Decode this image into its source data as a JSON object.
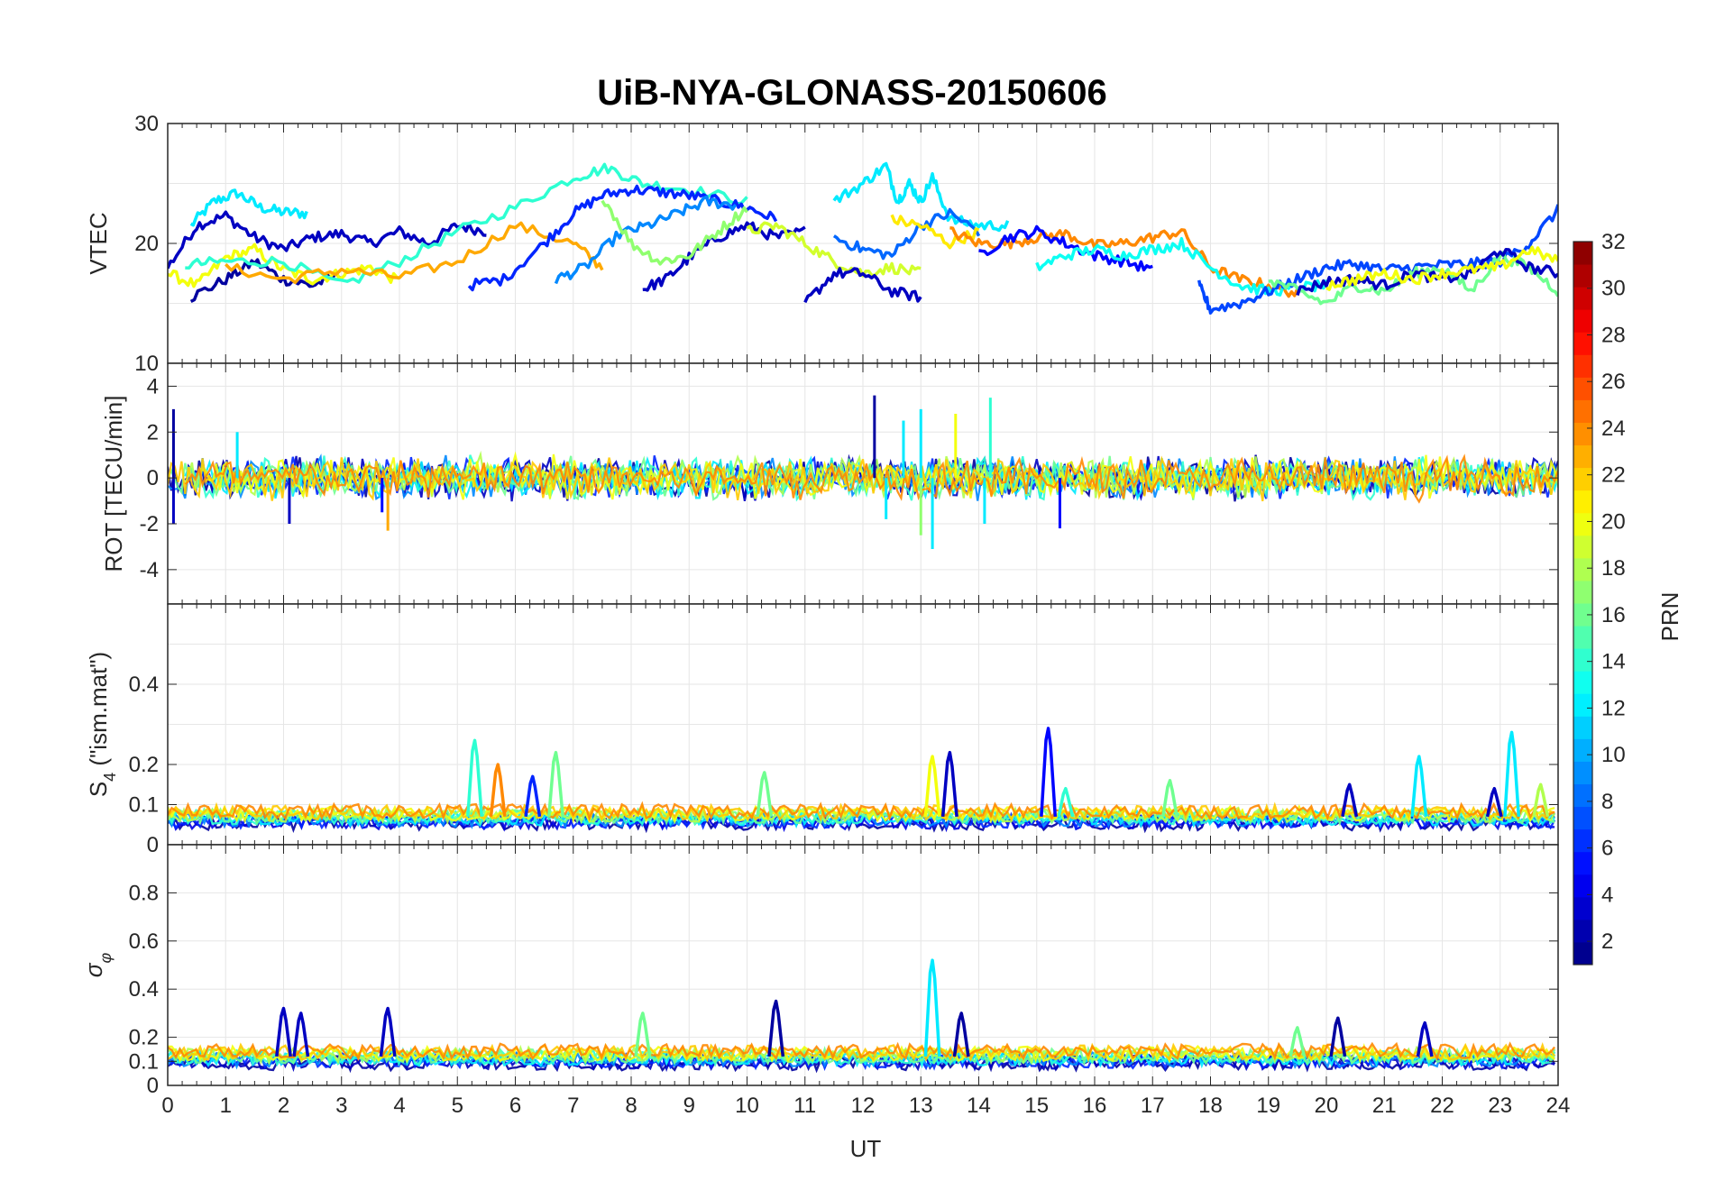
{
  "chart_data": {
    "type": "line",
    "title": "UiB-NYA-GLONASS-20150606",
    "xlabel": "UT",
    "xlim": [
      0,
      24
    ],
    "x_ticks": [
      "0",
      "1",
      "2",
      "3",
      "4",
      "5",
      "6",
      "7",
      "8",
      "9",
      "10",
      "11",
      "12",
      "13",
      "14",
      "15",
      "16",
      "17",
      "18",
      "19",
      "20",
      "21",
      "22",
      "23",
      "24"
    ],
    "panels": [
      {
        "key": "vtec",
        "ylabel": "VTEC",
        "ylim": [
          10,
          30
        ],
        "y_ticks": [
          {
            "v": 10,
            "t": "10"
          },
          {
            "v": 20,
            "t": "20"
          },
          {
            "v": 30,
            "t": "30"
          }
        ],
        "grid_y": [
          10,
          15,
          20,
          25,
          30
        ],
        "series": [
          {
            "prn": 12,
            "x": [
              0.4,
              0.8,
              1.2,
              1.6,
              2.0,
              2.4
            ],
            "y": [
              21.5,
              23.5,
              24.2,
              23.0,
              22.6,
              22.5
            ]
          },
          {
            "prn": 3,
            "x": [
              0,
              0.5,
              1.0,
              1.5,
              2.0,
              2.5,
              3.0,
              3.5,
              4.0,
              4.5,
              5.0,
              5.5
            ],
            "y": [
              18,
              21.5,
              22.3,
              20.5,
              19.5,
              20.5,
              20.8,
              20.0,
              21.0,
              20.0,
              21.5,
              21.0
            ]
          },
          {
            "prn": 2,
            "x": [
              0.4,
              1.0,
              1.5,
              2.0,
              2.5,
              3.0
            ],
            "y": [
              15.5,
              17.0,
              18.5,
              17.0,
              16.5,
              17.5
            ]
          },
          {
            "prn": 20,
            "x": [
              0,
              0.5,
              1.0,
              1.5,
              2.0,
              2.5,
              3.0,
              3.5,
              4.0
            ],
            "y": [
              17.5,
              16.5,
              18.8,
              19.5,
              17.8,
              17.0,
              17.5,
              18.0,
              16.8
            ]
          },
          {
            "prn": 14,
            "x": [
              0.3,
              1.0,
              2.0,
              3.0,
              4.0,
              5.0,
              6.0,
              7.0,
              7.6,
              8.2,
              9.0,
              10.0
            ],
            "y": [
              18.2,
              18.5,
              18.5,
              16.5,
              18.5,
              21.0,
              23.0,
              25.5,
              26.3,
              25.0,
              24.5,
              23.5
            ]
          },
          {
            "prn": 23,
            "x": [
              1.0,
              2.0,
              3.0,
              4.0,
              5.0,
              6.0,
              7.0,
              7.5
            ],
            "y": [
              18.0,
              17.0,
              17.8,
              17.2,
              18.5,
              21.5,
              20.0,
              18.0
            ]
          },
          {
            "prn": 6,
            "x": [
              5.2,
              5.8,
              6.5,
              7.0,
              7.5,
              8.0,
              8.5,
              9.0,
              9.5,
              10.0,
              10.5
            ],
            "y": [
              16.5,
              17.0,
              20.0,
              22.5,
              24.0,
              24.5,
              24.3,
              24.0,
              23.5,
              23.0,
              22.0
            ]
          },
          {
            "prn": 9,
            "x": [
              6.7,
              7.2,
              7.8,
              8.3,
              8.8,
              9.3,
              9.8
            ],
            "y": [
              17.0,
              18.0,
              20.8,
              21.5,
              22.5,
              23.5,
              23.2
            ]
          },
          {
            "prn": 3,
            "x": [
              8.2,
              8.6,
              9.0,
              9.5,
              10.0,
              10.5,
              11.0
            ],
            "y": [
              16.2,
              17.0,
              18.8,
              20.5,
              21.5,
              20.5,
              21.0
            ]
          },
          {
            "prn": 17,
            "x": [
              7.5,
              8.0,
              8.5,
              9.0,
              9.5,
              10.0
            ],
            "y": [
              24.0,
              20.0,
              18.5,
              19.0,
              21.0,
              23.0
            ]
          },
          {
            "prn": 12,
            "x": [
              11.5,
              12.0,
              12.4,
              12.6,
              12.8,
              13.0,
              13.2,
              13.5,
              14.0,
              14.5
            ],
            "y": [
              23.5,
              25.0,
              26.5,
              23.5,
              25.0,
              23.5,
              25.5,
              22.0,
              21.5,
              21.5
            ]
          },
          {
            "prn": 19,
            "x": [
              10.0,
              10.5,
              11.0,
              11.5,
              12.0,
              12.5,
              13.0
            ],
            "y": [
              21.0,
              21.5,
              20.0,
              18.5,
              17.5,
              18.0,
              17.5
            ]
          },
          {
            "prn": 3,
            "x": [
              11.0,
              11.5,
              12.0,
              12.5,
              13.0
            ],
            "y": [
              15.0,
              17.5,
              17.5,
              16.0,
              15.5
            ]
          },
          {
            "prn": 8,
            "x": [
              11.5,
              12.0,
              12.5,
              13.0,
              13.5,
              14.0
            ],
            "y": [
              20.5,
              19.5,
              19.0,
              21.5,
              22.5,
              21.0
            ]
          },
          {
            "prn": 21,
            "x": [
              12.5,
              13.0,
              13.5,
              14.0
            ],
            "y": [
              22.0,
              21.5,
              20.0,
              21.0
            ]
          },
          {
            "prn": 24,
            "x": [
              13.5,
              14.0,
              14.5,
              15.0,
              15.5,
              16.0,
              16.5,
              17.0,
              17.5,
              18.0,
              18.5,
              19.0,
              19.5
            ],
            "y": [
              21.0,
              20.0,
              20.0,
              20.5,
              20.8,
              19.8,
              20.0,
              20.5,
              21.0,
              18.0,
              17.0,
              16.5,
              15.8
            ]
          },
          {
            "prn": 5,
            "x": [
              14.0,
              14.5,
              15.0,
              15.5,
              16.0,
              16.5,
              17.0
            ],
            "y": [
              19.0,
              20.5,
              21.0,
              20.0,
              19.0,
              18.5,
              17.8
            ]
          },
          {
            "prn": 13,
            "x": [
              15.0,
              15.5,
              16.0,
              16.5,
              17.0,
              17.5,
              18.0,
              18.5,
              19.0,
              19.5,
              20.0
            ],
            "y": [
              18.0,
              19.0,
              19.5,
              19.0,
              19.5,
              20.0,
              18.0,
              16.5,
              16.0,
              16.3,
              16.5
            ]
          },
          {
            "prn": 7,
            "x": [
              17.8,
              18.0,
              18.5,
              19.0,
              19.5,
              20.0,
              20.5,
              21.0,
              21.5,
              22.0,
              22.5,
              23.0,
              23.5,
              24.0
            ],
            "y": [
              16.5,
              14.5,
              15.0,
              16.0,
              17.0,
              18.0,
              18.3,
              17.8,
              18.0,
              18.2,
              18.3,
              18.5,
              20.0,
              22.8
            ]
          },
          {
            "prn": 16,
            "x": [
              19.0,
              19.5,
              20.0,
              20.5,
              21.0,
              21.5,
              22.0,
              22.5,
              23.0,
              23.5,
              24.0
            ],
            "y": [
              17.0,
              16.0,
              15.0,
              16.5,
              16.0,
              17.5,
              18.0,
              16.0,
              19.0,
              18.0,
              16.0
            ]
          },
          {
            "prn": 3,
            "x": [
              19.5,
              20.0,
              20.5,
              21.0,
              21.5,
              22.0,
              22.5,
              23.0,
              23.5,
              24.0
            ],
            "y": [
              16.0,
              16.8,
              17.0,
              16.5,
              17.5,
              17.0,
              17.5,
              19.5,
              18.0,
              17.5
            ]
          },
          {
            "prn": 20,
            "x": [
              20.0,
              20.5,
              21.0,
              21.5,
              22.0,
              22.5,
              23.0,
              23.5,
              24.0
            ],
            "y": [
              16.5,
              17.0,
              17.5,
              17.0,
              17.5,
              17.8,
              18.0,
              19.5,
              18.5
            ]
          }
        ]
      },
      {
        "key": "rot",
        "ylabel": "ROT [TECU/min]",
        "ylim": [
          -5.5,
          5
        ],
        "y_ticks": [
          {
            "v": -4,
            "t": "-4"
          },
          {
            "v": -2,
            "t": "-2"
          },
          {
            "v": 0,
            "t": "0"
          },
          {
            "v": 2,
            "t": "2"
          },
          {
            "v": 4,
            "t": "4"
          }
        ],
        "grid_y": [
          -4,
          -2,
          0,
          2,
          4
        ],
        "noise_band": {
          "amplitude": 0.7,
          "center": 0
        },
        "spikes": [
          {
            "x": 0.1,
            "y": 3.0,
            "prn": 2
          },
          {
            "x": 0.1,
            "y": -2.0,
            "prn": 3
          },
          {
            "x": 1.2,
            "y": 2.0,
            "prn": 12
          },
          {
            "x": 2.1,
            "y": -2.0,
            "prn": 3
          },
          {
            "x": 3.7,
            "y": -1.5,
            "prn": 5
          },
          {
            "x": 3.8,
            "y": -2.3,
            "prn": 23
          },
          {
            "x": 12.2,
            "y": 3.6,
            "prn": 2
          },
          {
            "x": 12.4,
            "y": -1.8,
            "prn": 12
          },
          {
            "x": 12.7,
            "y": 2.5,
            "prn": 12
          },
          {
            "x": 13.0,
            "y": 3.0,
            "prn": 12
          },
          {
            "x": 13.2,
            "y": -3.1,
            "prn": 12
          },
          {
            "x": 13.0,
            "y": -2.5,
            "prn": 17
          },
          {
            "x": 14.2,
            "y": 3.5,
            "prn": 14
          },
          {
            "x": 14.1,
            "y": -2.0,
            "prn": 12
          },
          {
            "x": 15.4,
            "y": -2.2,
            "prn": 5
          },
          {
            "x": 13.6,
            "y": 2.8,
            "prn": 20
          }
        ]
      },
      {
        "key": "s4",
        "ylabel": "S4 (\"ism.mat\")",
        "ylabel_main": "S",
        "ylabel_sub": "4",
        "ylabel_rest": " (\"ism.mat\")",
        "ylim": [
          0,
          0.6
        ],
        "y_ticks": [
          {
            "v": 0,
            "t": "0"
          },
          {
            "v": 0.1,
            "t": "0.1"
          },
          {
            "v": 0.2,
            "t": "0.2"
          },
          {
            "v": 0.4,
            "t": "0.4"
          }
        ],
        "grid_y": [
          0.1,
          0.2,
          0.3,
          0.4,
          0.5
        ],
        "baseline": 0.07,
        "spikes": [
          {
            "x": 5.3,
            "y": 0.26,
            "prn": 14
          },
          {
            "x": 5.7,
            "y": 0.2,
            "prn": 24
          },
          {
            "x": 6.7,
            "y": 0.23,
            "prn": 16
          },
          {
            "x": 6.3,
            "y": 0.17,
            "prn": 6
          },
          {
            "x": 10.3,
            "y": 0.18,
            "prn": 16
          },
          {
            "x": 13.2,
            "y": 0.22,
            "prn": 20
          },
          {
            "x": 13.5,
            "y": 0.23,
            "prn": 3
          },
          {
            "x": 15.2,
            "y": 0.29,
            "prn": 5
          },
          {
            "x": 15.5,
            "y": 0.14,
            "prn": 14
          },
          {
            "x": 17.3,
            "y": 0.16,
            "prn": 16
          },
          {
            "x": 20.4,
            "y": 0.15,
            "prn": 3
          },
          {
            "x": 21.6,
            "y": 0.22,
            "prn": 12
          },
          {
            "x": 23.2,
            "y": 0.28,
            "prn": 12
          },
          {
            "x": 22.9,
            "y": 0.14,
            "prn": 3
          },
          {
            "x": 23.7,
            "y": 0.15,
            "prn": 18
          }
        ]
      },
      {
        "key": "sigma",
        "ylabel": "σ_φ",
        "ylabel_main": "σ",
        "ylabel_sub": "φ",
        "ylim": [
          0,
          1
        ],
        "y_ticks": [
          {
            "v": 0,
            "t": "0"
          },
          {
            "v": 0.1,
            "t": "0.1"
          },
          {
            "v": 0.2,
            "t": "0.2"
          },
          {
            "v": 0.4,
            "t": "0.4"
          },
          {
            "v": 0.6,
            "t": "0.6"
          },
          {
            "v": 0.8,
            "t": "0.8"
          }
        ],
        "grid_y": [
          0.2,
          0.4,
          0.6,
          0.8
        ],
        "baseline": 0.12,
        "spikes": [
          {
            "x": 2.0,
            "y": 0.32,
            "prn": 3
          },
          {
            "x": 2.3,
            "y": 0.3,
            "prn": 3
          },
          {
            "x": 3.8,
            "y": 0.32,
            "prn": 3
          },
          {
            "x": 8.2,
            "y": 0.3,
            "prn": 16
          },
          {
            "x": 10.5,
            "y": 0.35,
            "prn": 2
          },
          {
            "x": 13.2,
            "y": 0.52,
            "prn": 12
          },
          {
            "x": 13.7,
            "y": 0.3,
            "prn": 2
          },
          {
            "x": 20.2,
            "y": 0.28,
            "prn": 2
          },
          {
            "x": 21.7,
            "y": 0.26,
            "prn": 3
          },
          {
            "x": 19.5,
            "y": 0.24,
            "prn": 16
          }
        ]
      }
    ],
    "colorbar": {
      "label": "PRN",
      "range": [
        1,
        32
      ],
      "ticks": [
        "2",
        "4",
        "6",
        "8",
        "10",
        "12",
        "14",
        "16",
        "18",
        "20",
        "22",
        "24",
        "26",
        "28",
        "30",
        "32"
      ],
      "colormap": "jet"
    }
  }
}
